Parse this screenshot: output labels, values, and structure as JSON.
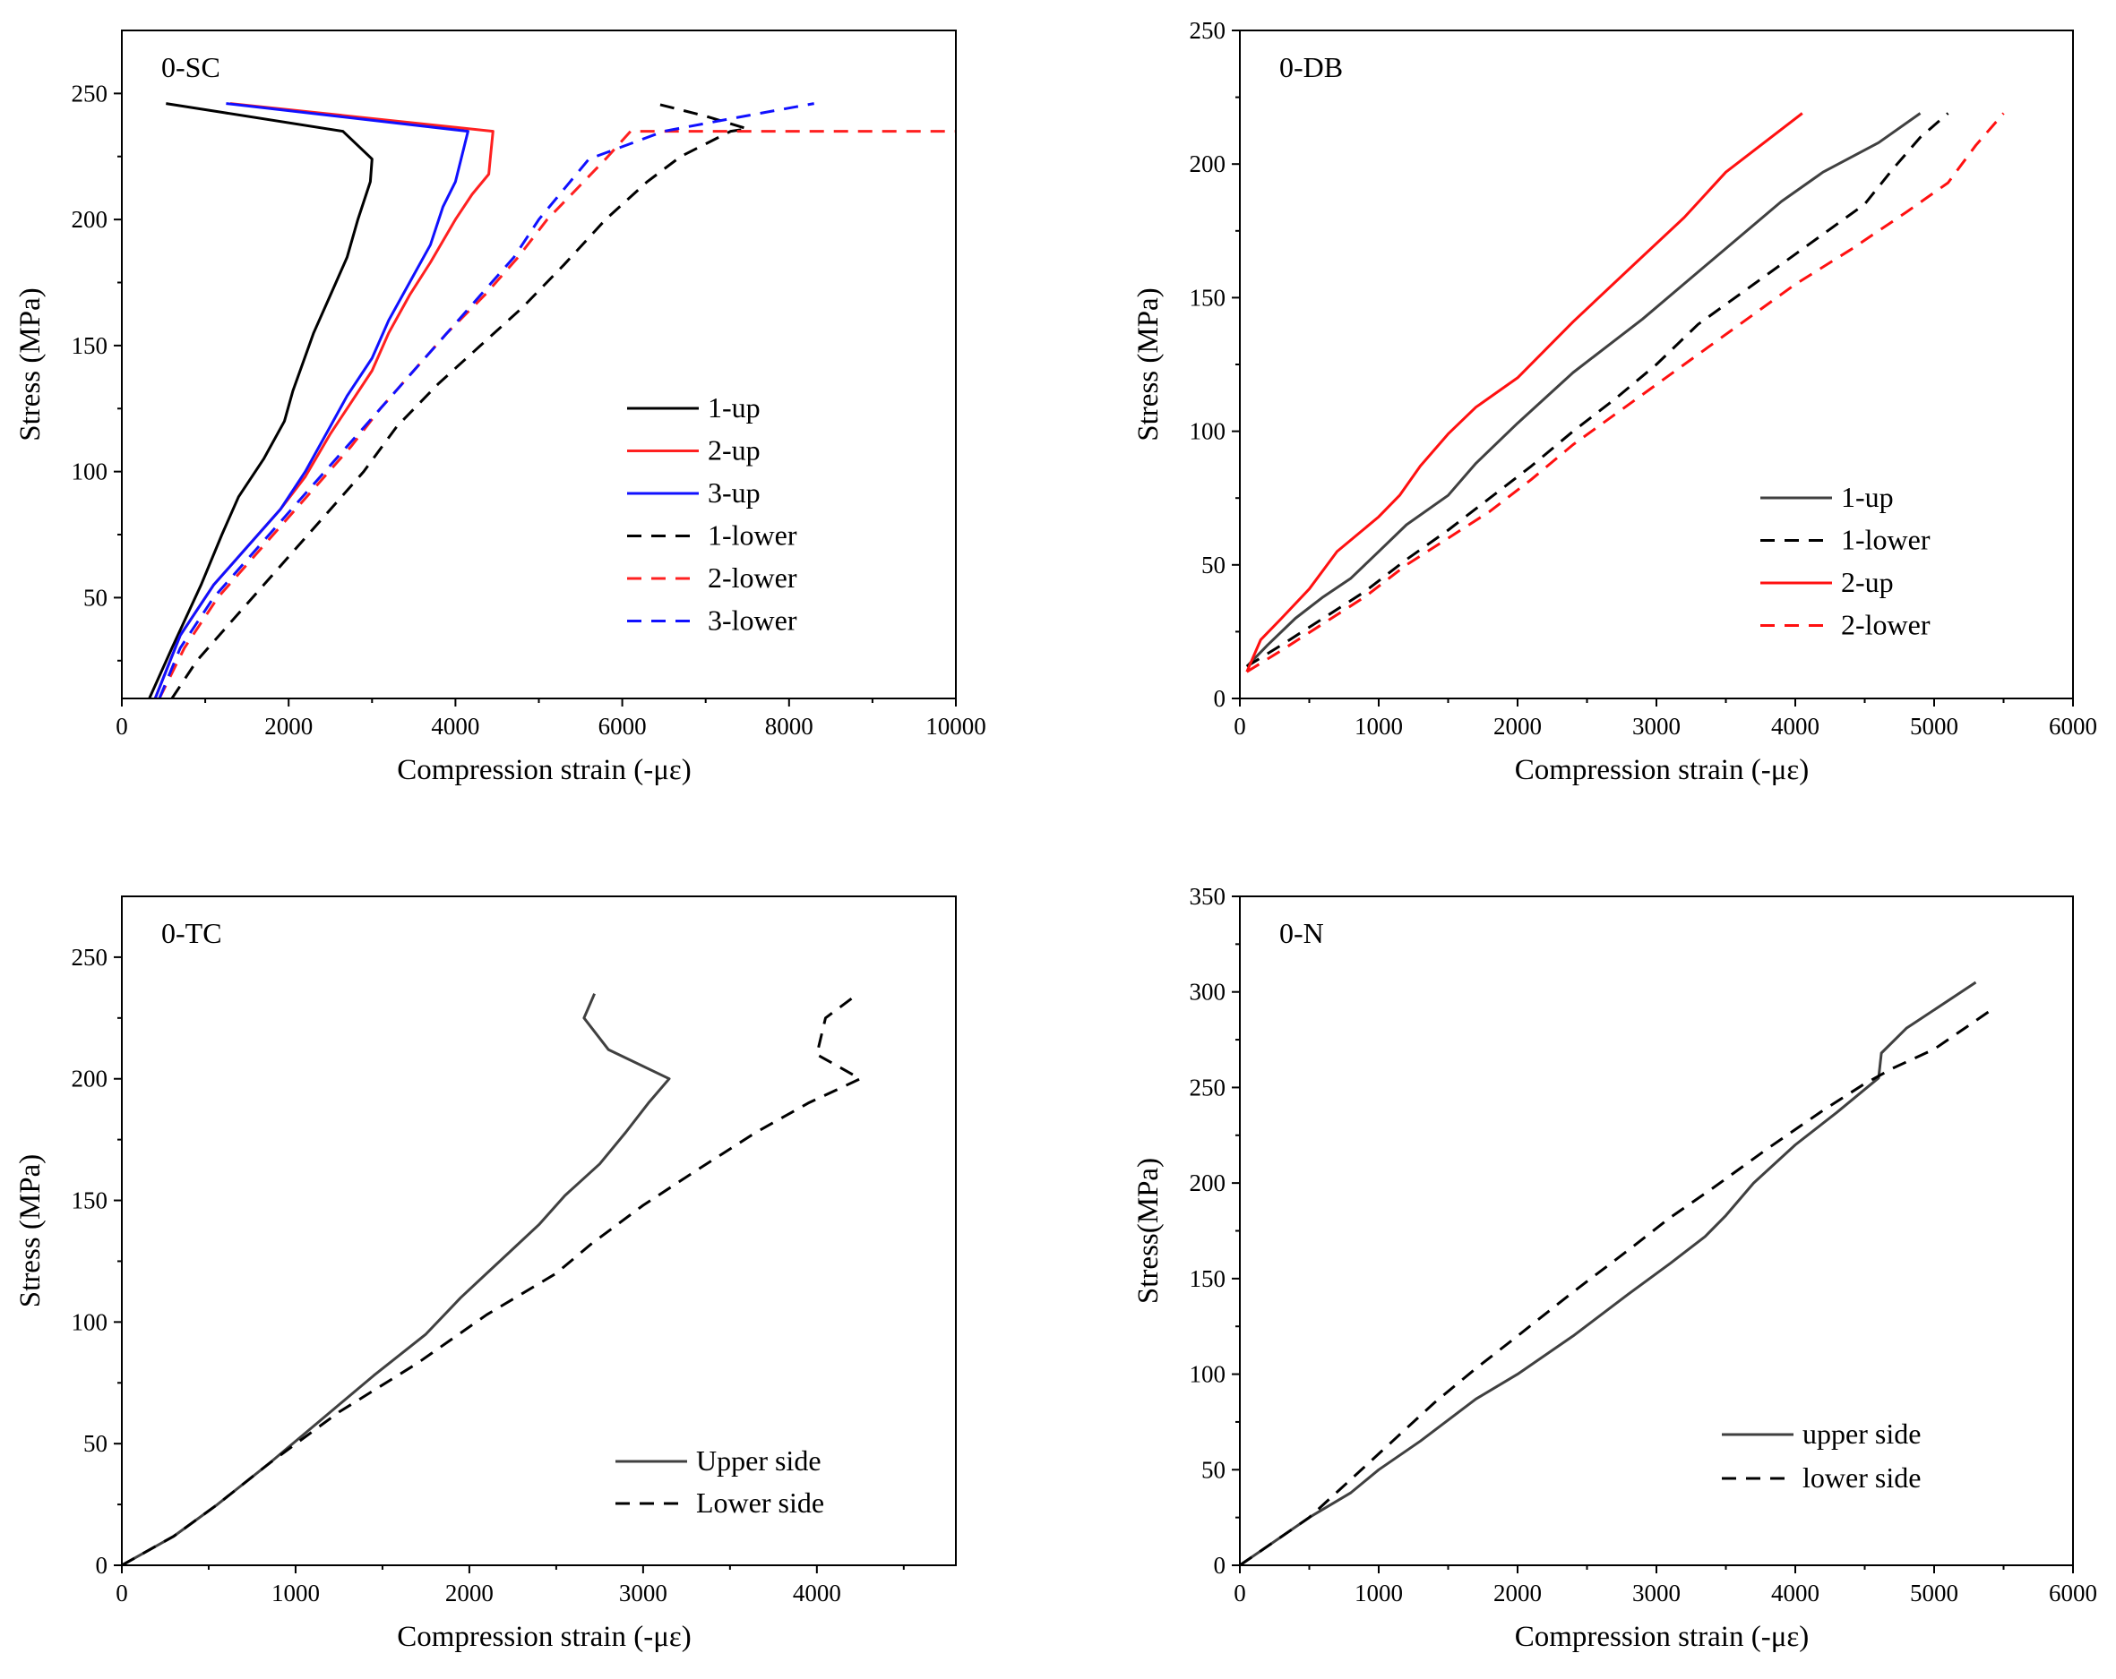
{
  "chart_data": [
    {
      "id": "sc",
      "type": "line",
      "label": "0-SC",
      "xlabel": "Compression strain (-με)",
      "ylabel": "Stress (MPa)",
      "xlim": [
        0,
        10000
      ],
      "ylim": [
        10,
        275
      ],
      "xticks": [
        0,
        2000,
        4000,
        6000,
        8000,
        10000
      ],
      "yticks": [
        50,
        100,
        150,
        200,
        250
      ],
      "legend": "right",
      "series": [
        {
          "name": "1-up",
          "color": "#000000",
          "dash": "solid",
          "x": [
            330,
            600,
            950,
            1200,
            1400,
            1700,
            1950,
            2050,
            2300,
            2500,
            2700,
            2830,
            2980,
            3000,
            2650,
            530
          ],
          "y": [
            10,
            30,
            55,
            75,
            90,
            105,
            120,
            132,
            155,
            170,
            185,
            200,
            215,
            224,
            235,
            246
          ]
        },
        {
          "name": "2-up",
          "color": "#ff2020",
          "dash": "solid",
          "x": [
            400,
            700,
            1100,
            1500,
            1900,
            2200,
            2500,
            2700,
            3000,
            3200,
            3450,
            3700,
            4000,
            4200,
            4400,
            4420,
            4450,
            1300
          ],
          "y": [
            10,
            35,
            55,
            70,
            85,
            98,
            115,
            125,
            140,
            155,
            170,
            183,
            200,
            210,
            218,
            225,
            235,
            246
          ]
        },
        {
          "name": "3-up",
          "color": "#1010ff",
          "dash": "solid",
          "x": [
            400,
            700,
            1100,
            1500,
            1900,
            2200,
            2500,
            2700,
            3000,
            3200,
            3450,
            3700,
            3850,
            4000,
            4150,
            1250
          ],
          "y": [
            10,
            35,
            55,
            70,
            85,
            100,
            118,
            130,
            145,
            160,
            175,
            190,
            205,
            215,
            235,
            246
          ]
        },
        {
          "name": "1-lower",
          "color": "#000000",
          "dash": "dashed",
          "x": [
            600,
            900,
            1300,
            1700,
            2100,
            2500,
            2900,
            3300,
            3800,
            4300,
            4800,
            5300,
            5800,
            6300,
            6700,
            7000,
            7300,
            7500,
            7000,
            6400
          ],
          "y": [
            10,
            25,
            40,
            55,
            70,
            85,
            100,
            118,
            135,
            150,
            165,
            182,
            200,
            215,
            225,
            230,
            235,
            236,
            241,
            246
          ]
        },
        {
          "name": "2-lower",
          "color": "#ff2020",
          "dash": "dashed",
          "x": [
            450,
            750,
            1150,
            1550,
            1950,
            2350,
            2750,
            3100,
            3500,
            3900,
            4350,
            4750,
            5100,
            5450,
            5800,
            6100,
            10000
          ],
          "y": [
            10,
            30,
            50,
            65,
            80,
            95,
            110,
            125,
            140,
            155,
            170,
            185,
            200,
            212,
            224,
            235,
            235
          ]
        },
        {
          "name": "3-lower",
          "color": "#1010ff",
          "dash": "dashed",
          "x": [
            450,
            700,
            1100,
            1500,
            1900,
            2300,
            2700,
            3100,
            3500,
            3900,
            4300,
            4700,
            5000,
            5300,
            5600,
            6500,
            7300,
            8300
          ],
          "y": [
            10,
            30,
            50,
            65,
            80,
            95,
            110,
            125,
            140,
            155,
            170,
            185,
            200,
            212,
            224,
            235,
            240,
            246
          ]
        }
      ]
    },
    {
      "id": "db",
      "type": "line",
      "label": "0-DB",
      "xlabel": "Compression strain (-με)",
      "ylabel": "Stress (MPa)",
      "xlim": [
        0,
        6000
      ],
      "ylim": [
        0,
        250
      ],
      "xticks": [
        0,
        1000,
        2000,
        3000,
        4000,
        5000,
        6000
      ],
      "yticks": [
        0,
        50,
        100,
        150,
        200,
        250
      ],
      "legend": "right",
      "series": [
        {
          "name": "1-up",
          "color": "#404040",
          "dash": "solid",
          "x": [
            50,
            200,
            400,
            600,
            800,
            1000,
            1200,
            1500,
            1700,
            2000,
            2400,
            2900,
            3400,
            3900,
            4200,
            4600,
            4900
          ],
          "y": [
            12,
            20,
            30,
            38,
            45,
            55,
            65,
            76,
            88,
            103,
            122,
            142,
            164,
            186,
            197,
            208,
            219
          ]
        },
        {
          "name": "1-lower",
          "color": "#000000",
          "dash": "dashed",
          "x": [
            50,
            300,
            600,
            900,
            1200,
            1500,
            1800,
            2100,
            2400,
            2700,
            3000,
            3300,
            3700,
            4100,
            4500,
            4700,
            4900,
            5100
          ],
          "y": [
            12,
            20,
            30,
            40,
            52,
            63,
            75,
            87,
            100,
            112,
            125,
            140,
            155,
            170,
            185,
            198,
            210,
            219
          ]
        },
        {
          "name": "2-up",
          "color": "#ff1010",
          "dash": "solid",
          "x": [
            50,
            150,
            300,
            500,
            700,
            1000,
            1150,
            1300,
            1500,
            1700,
            2000,
            2400,
            2850,
            3200,
            3500,
            4050
          ],
          "y": [
            10,
            22,
            30,
            41,
            55,
            68,
            76,
            87,
            99,
            109,
            120,
            141,
            163,
            180,
            197,
            219
          ]
        },
        {
          "name": "2-lower",
          "color": "#ff1010",
          "dash": "dashed",
          "x": [
            50,
            300,
            600,
            900,
            1200,
            1500,
            1800,
            2100,
            2400,
            2800,
            3200,
            3600,
            4000,
            4400,
            4800,
            5100,
            5300,
            5500
          ],
          "y": [
            10,
            18,
            28,
            38,
            50,
            60,
            70,
            82,
            95,
            110,
            125,
            140,
            155,
            168,
            182,
            193,
            207,
            219
          ]
        }
      ]
    },
    {
      "id": "tc",
      "type": "line",
      "label": "0-TC",
      "xlabel": "Compression strain (-με)",
      "ylabel": "Stress (MPa)",
      "xlim": [
        0,
        4800
      ],
      "ylim": [
        0,
        275
      ],
      "xticks": [
        0,
        1000,
        2000,
        3000,
        4000
      ],
      "yticks": [
        0,
        50,
        100,
        150,
        200,
        250
      ],
      "legend": "right",
      "series": [
        {
          "name": "Upper side",
          "color": "#404040",
          "dash": "solid",
          "x": [
            0,
            300,
            550,
            850,
            1150,
            1450,
            1750,
            1950,
            2100,
            2250,
            2400,
            2550,
            2750,
            2900,
            3030,
            3150,
            2800,
            2660,
            2720
          ],
          "y": [
            0,
            12,
            25,
            42,
            60,
            78,
            95,
            110,
            120,
            130,
            140,
            152,
            165,
            178,
            190,
            200,
            212,
            225,
            235
          ]
        },
        {
          "name": "Lower side",
          "color": "#000000",
          "dash": "dashed",
          "x": [
            0,
            300,
            550,
            850,
            1250,
            1700,
            2100,
            2500,
            2700,
            3000,
            3300,
            3650,
            3950,
            4250,
            4000,
            4050,
            4200
          ],
          "y": [
            0,
            12,
            25,
            42,
            63,
            83,
            103,
            120,
            132,
            148,
            162,
            178,
            190,
            200,
            210,
            225,
            233
          ]
        }
      ]
    },
    {
      "id": "n",
      "type": "line",
      "label": "0-N",
      "xlabel": "Compression strain (-με)",
      "ylabel": "Stress(MPa)",
      "xlim": [
        0,
        6000
      ],
      "ylim": [
        0,
        350
      ],
      "xticks": [
        0,
        1000,
        2000,
        3000,
        4000,
        5000,
        6000
      ],
      "yticks": [
        0,
        50,
        100,
        150,
        200,
        250,
        300,
        350
      ],
      "legend": "right",
      "series": [
        {
          "name": "upper side",
          "color": "#404040",
          "dash": "solid",
          "x": [
            0,
            300,
            500,
            800,
            1000,
            1300,
            1700,
            2000,
            2400,
            2800,
            3100,
            3350,
            3500,
            3700,
            4000,
            4300,
            4600,
            4620,
            4800,
            5300
          ],
          "y": [
            0,
            15,
            25,
            38,
            50,
            65,
            87,
            100,
            120,
            142,
            158,
            172,
            183,
            200,
            220,
            237,
            255,
            268,
            281,
            305
          ]
        },
        {
          "name": "lower side",
          "color": "#000000",
          "dash": "dashed",
          "x": [
            0,
            200,
            500,
            800,
            1100,
            1400,
            1700,
            2000,
            2400,
            2800,
            3100,
            3400,
            3800,
            4200,
            4500,
            4700,
            5000,
            5400
          ],
          "y": [
            0,
            10,
            25,
            45,
            65,
            85,
            103,
            120,
            143,
            165,
            182,
            197,
            218,
            238,
            252,
            260,
            270,
            290
          ]
        }
      ]
    }
  ]
}
